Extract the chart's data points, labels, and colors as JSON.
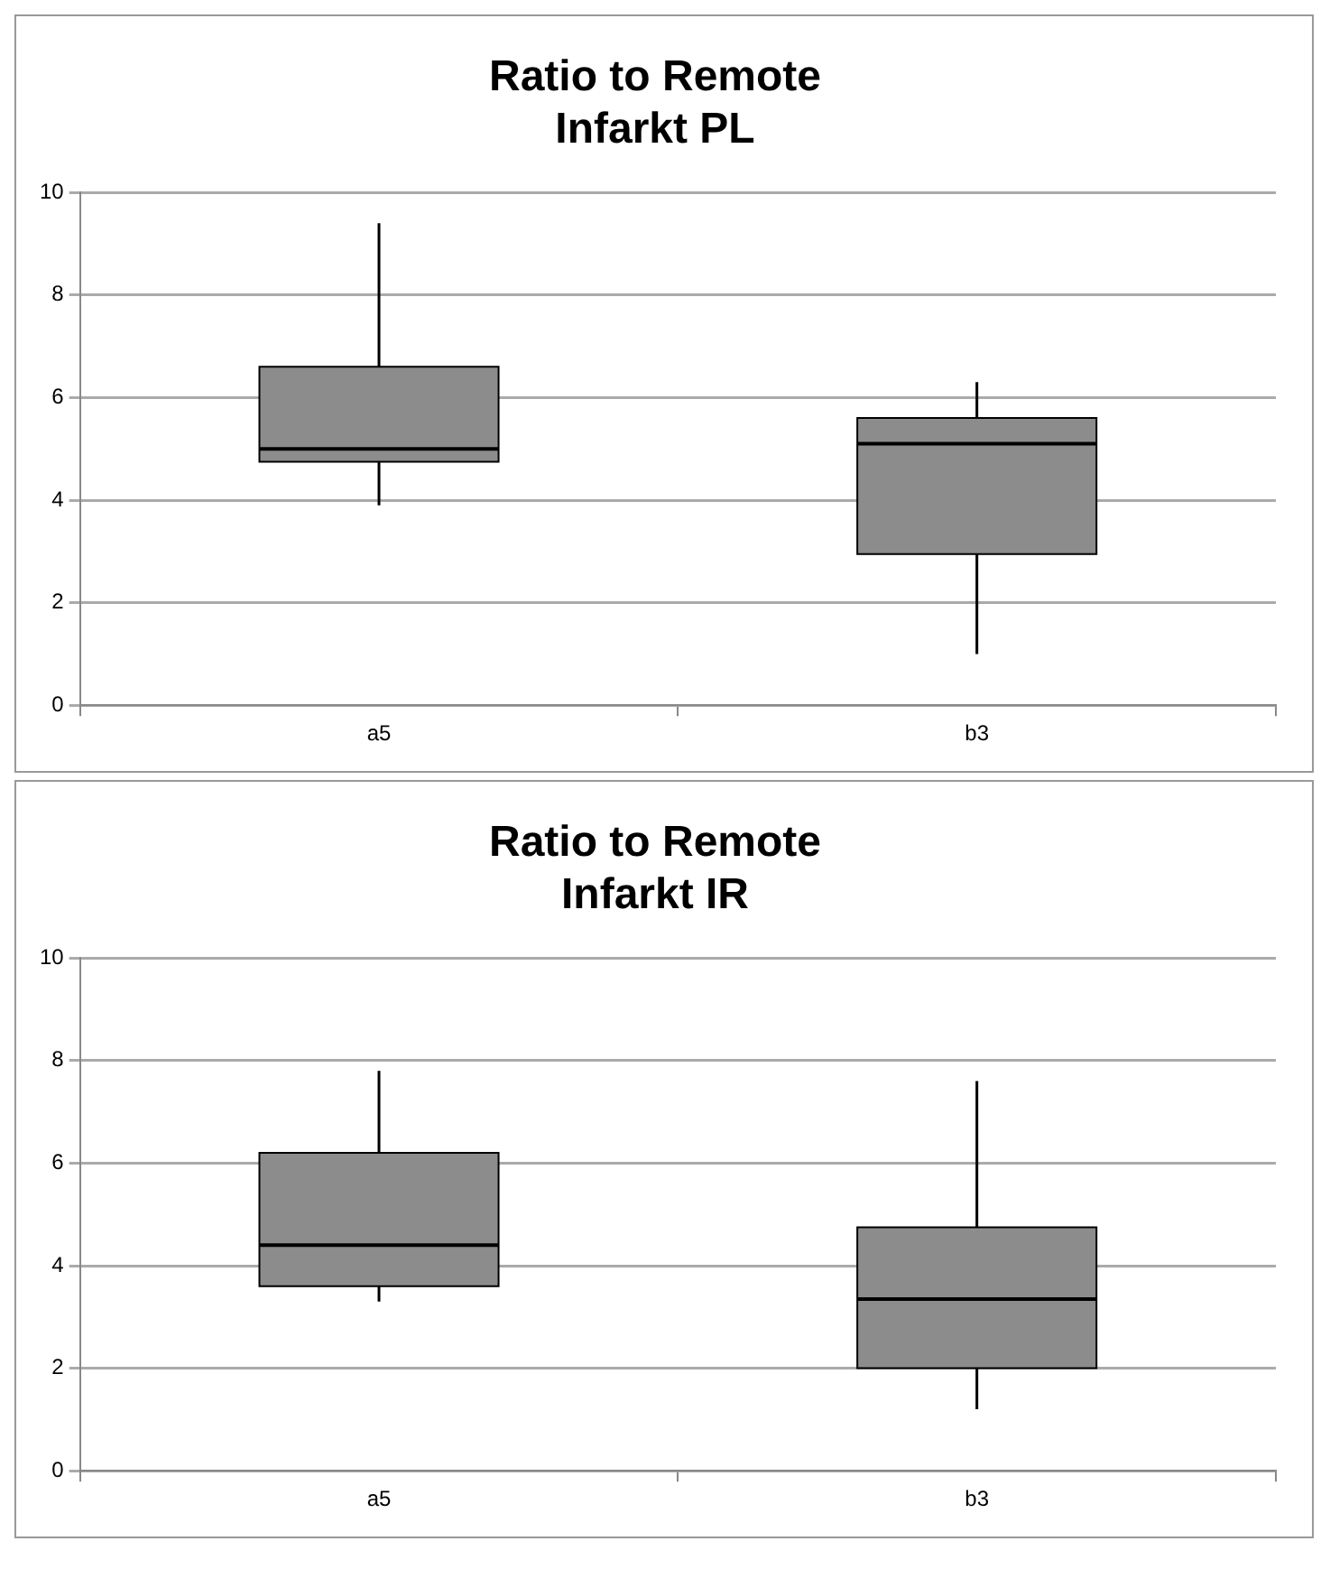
{
  "chart_data": [
    {
      "type": "box",
      "title": "Ratio to Remote\nInfarkt PL",
      "categories": [
        "a5",
        "b3"
      ],
      "ylim": [
        0,
        10
      ],
      "yticks": [
        0,
        2,
        4,
        6,
        8,
        10
      ],
      "grid": "y",
      "series": [
        {
          "color": "#8c8c8c",
          "boxes": [
            {
              "low": 3.9,
              "q1": 4.75,
              "median": 5.0,
              "q3": 6.6,
              "high": 9.4
            },
            {
              "low": 1.0,
              "q1": 2.95,
              "median": 5.1,
              "q3": 5.6,
              "high": 6.3
            }
          ]
        }
      ]
    },
    {
      "type": "box",
      "title": "Ratio to Remote\nInfarkt IR",
      "categories": [
        "a5",
        "b3"
      ],
      "ylim": [
        0,
        10
      ],
      "yticks": [
        0,
        2,
        4,
        6,
        8,
        10
      ],
      "grid": "y",
      "series": [
        {
          "color": "#8c8c8c",
          "boxes": [
            {
              "low": 3.3,
              "q1": 3.6,
              "median": 4.4,
              "q3": 6.2,
              "high": 7.8
            },
            {
              "low": 1.2,
              "q1": 2.0,
              "median": 3.35,
              "q3": 4.75,
              "high": 7.6
            }
          ]
        }
      ]
    }
  ]
}
